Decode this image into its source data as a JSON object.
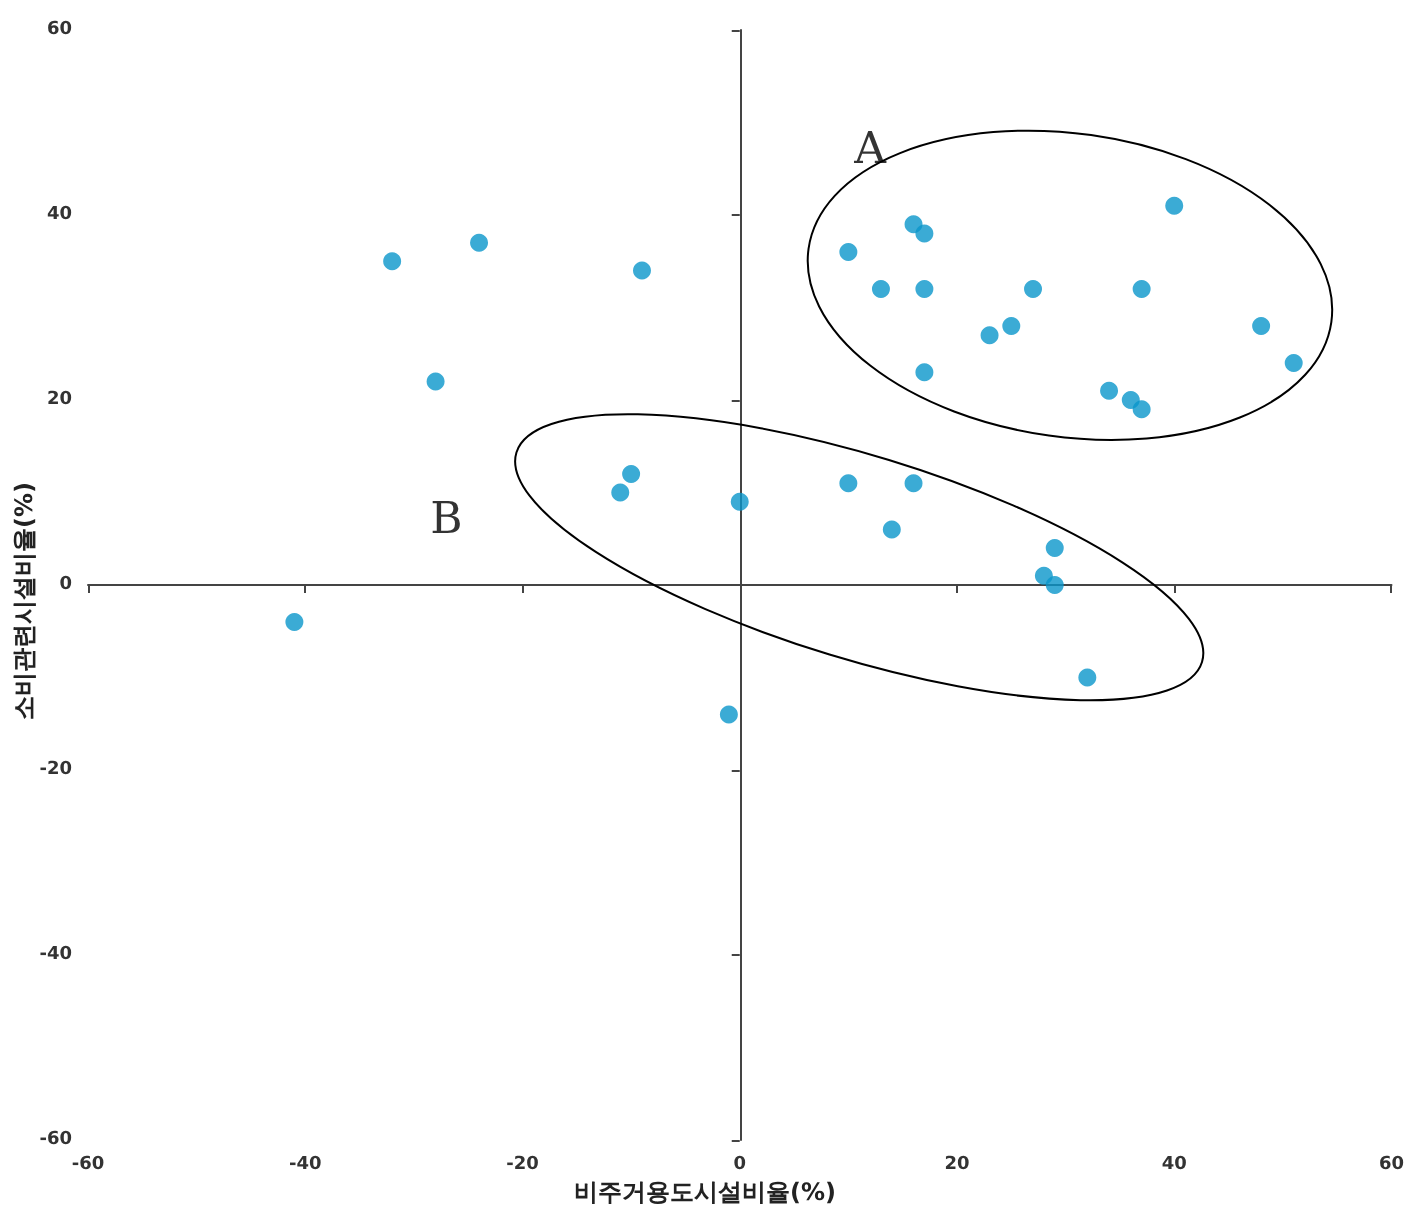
{
  "chart_data": {
    "type": "scatter",
    "xlabel": "비주거용도시설비율(%)",
    "ylabel": "소비관련시설비율(%)",
    "x": [
      -32,
      -24,
      -28,
      -9,
      -11,
      -10,
      0,
      -41,
      -1,
      40,
      16,
      17,
      10,
      13,
      17,
      27,
      37,
      23,
      25,
      48,
      51,
      17,
      34,
      36,
      37,
      10,
      16,
      14,
      29,
      28,
      29,
      32
    ],
    "values": [
      35,
      37,
      22,
      34,
      10,
      12,
      9,
      -4,
      -14,
      41,
      39,
      38,
      36,
      32,
      32,
      32,
      32,
      27,
      28,
      28,
      24,
      23,
      21,
      20,
      19,
      11,
      11,
      6,
      4,
      1,
      0,
      -10
    ],
    "color": "#0a96cb",
    "marker": "circle",
    "xlim": [
      -60,
      60
    ],
    "xticks": [
      -60,
      -40,
      -20,
      0,
      20,
      40,
      60
    ],
    "ylim": [
      -60,
      60
    ],
    "yticks": [
      -60,
      -40,
      -20,
      0,
      20,
      40,
      60
    ],
    "annotations": [
      "A",
      "B"
    ]
  }
}
